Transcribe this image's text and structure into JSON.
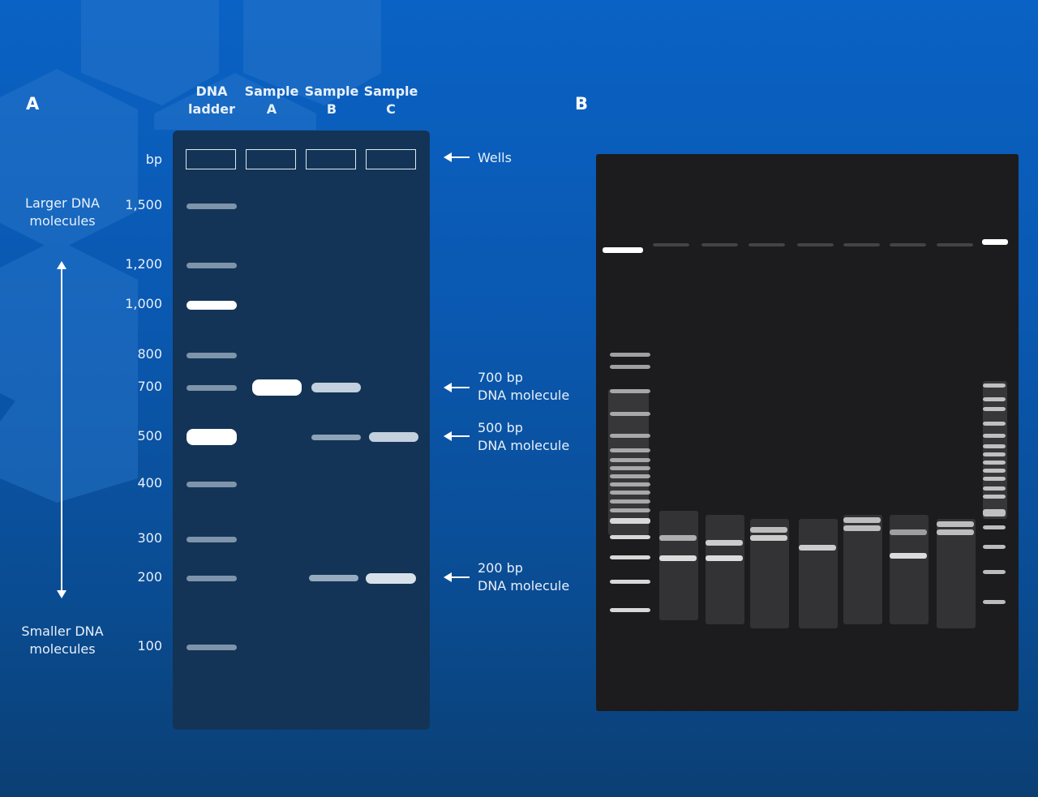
{
  "panel_a": {
    "letter": "A",
    "lanes": [
      {
        "line1": "DNA",
        "line2": "ladder"
      },
      {
        "line1": "Sample",
        "line2": "A"
      },
      {
        "line1": "Sample",
        "line2": "B"
      },
      {
        "line1": "Sample",
        "line2": "C"
      }
    ],
    "unit": "bp",
    "sizes": [
      "1,500",
      "1,200",
      "1,000",
      "800",
      "700",
      "500",
      "400",
      "300",
      "200",
      "100"
    ],
    "larger_label": {
      "line1": "Larger DNA",
      "line2": "molecules"
    },
    "smaller_label": {
      "line1": "Smaller DNA",
      "line2": "molecules"
    },
    "annotations": {
      "wells": "Wells",
      "bp700": {
        "line1": "700 bp",
        "line2": "DNA molecule"
      },
      "bp500": {
        "line1": "500 bp",
        "line2": "DNA molecule"
      },
      "bp200": {
        "line1": "200 bp",
        "line2": "DNA molecule"
      }
    },
    "samples": {
      "ladder": [
        1500,
        1200,
        1000,
        800,
        700,
        500,
        400,
        300,
        200,
        100
      ],
      "sample_a": [
        700
      ],
      "sample_b": [
        700,
        500,
        200
      ],
      "sample_c": [
        500,
        200
      ]
    }
  },
  "panel_b": {
    "letter": "B"
  }
}
